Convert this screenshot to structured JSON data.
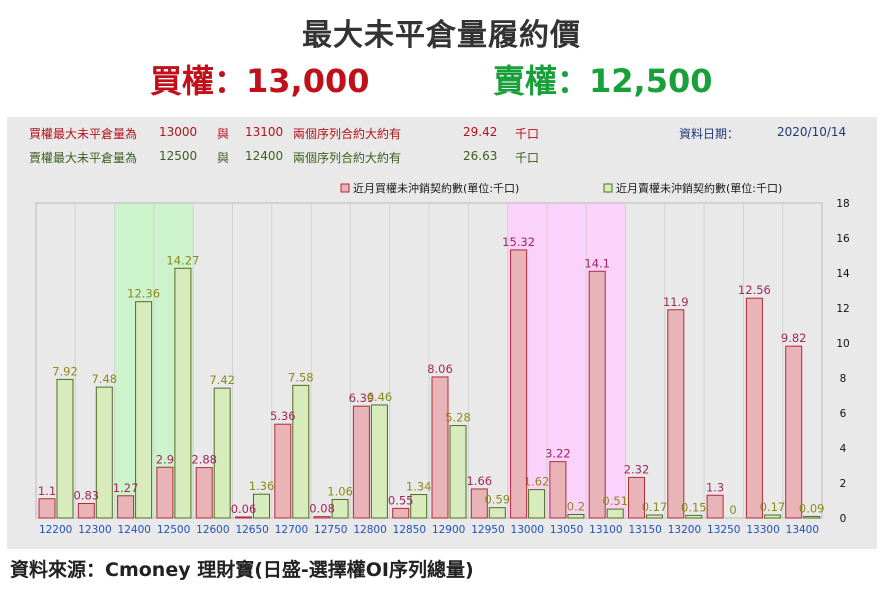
{
  "header": {
    "title": "最大未平倉量履約價",
    "call_label": "買權：13,000",
    "put_label": "賣權：12,500"
  },
  "info": {
    "call_row": {
      "label": "買權最大未平倉量為",
      "strike1": "13000",
      "and": "與",
      "strike2": "13100",
      "desc": "兩個序列合約大約有",
      "value": "29.42",
      "unit": "千口"
    },
    "put_row": {
      "label": "賣權最大未平倉量為",
      "strike1": "12500",
      "and": "與",
      "strike2": "12400",
      "desc": "兩個序列合約大約有",
      "value": "26.63",
      "unit": "千口"
    },
    "date_label": "資料日期：",
    "date_value": "2020/10/14"
  },
  "footer": {
    "source": "資料來源：Cmoney 理財寶(日盛-選擇權OI序列總量)"
  },
  "colors": {
    "call_fill": "#e8b4b8",
    "call_stroke": "#b22a3a",
    "call_label": "#a2275a",
    "put_fill": "#d8ebbc",
    "put_stroke": "#4d6e1e",
    "put_label": "#8a8a1a",
    "highlight_green": "#cdf3cd",
    "highlight_pink": "#fbd2fb",
    "axis_text": "#2050c0"
  },
  "chart_data": {
    "type": "bar",
    "categories": [
      "12200",
      "12300",
      "12400",
      "12500",
      "12600",
      "12650",
      "12700",
      "12750",
      "12800",
      "12850",
      "12900",
      "12950",
      "13000",
      "13050",
      "13100",
      "13150",
      "13200",
      "13250",
      "13300",
      "13400"
    ],
    "series": [
      {
        "name": "近月買權未沖銷契約數(單位:千口)",
        "values": [
          1.1,
          0.83,
          1.27,
          2.9,
          2.88,
          0.06,
          5.36,
          0.08,
          6.39,
          0.55,
          8.06,
          1.66,
          15.32,
          3.22,
          14.1,
          2.32,
          11.9,
          1.3,
          12.56,
          9.82
        ]
      },
      {
        "name": "近月賣權未沖銷契約數(單位:千口)",
        "values": [
          7.92,
          7.48,
          12.36,
          14.27,
          7.42,
          1.36,
          7.58,
          1.06,
          6.46,
          1.34,
          5.28,
          0.59,
          1.62,
          0.2,
          0.51,
          0.17,
          0.15,
          0,
          0.17,
          0.09
        ]
      }
    ],
    "yticks": [
      "0",
      "2",
      "4",
      "6",
      "8",
      "10",
      "12",
      "14",
      "16",
      "18"
    ],
    "ylim": [
      0,
      18
    ],
    "y_axis_side": "right",
    "legend_position": "top-right",
    "highlight_categories": {
      "green": [
        "12400",
        "12500"
      ],
      "pink": [
        "13000",
        "13100"
      ]
    },
    "grid": "vertical"
  }
}
